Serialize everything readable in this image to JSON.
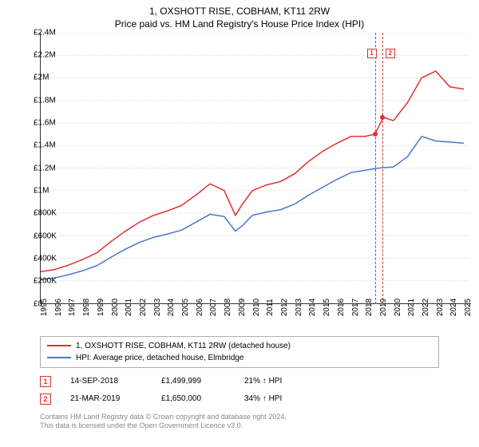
{
  "title": "1, OXSHOTT RISE, COBHAM, KT11 2RW",
  "subtitle": "Price paid vs. HM Land Registry's House Price Index (HPI)",
  "chart": {
    "type": "line",
    "background_color": "#ffffff",
    "grid_color": "#dddddd",
    "axis_color": "#333333",
    "x_years": [
      1995,
      1996,
      1997,
      1998,
      1999,
      2000,
      2001,
      2002,
      2003,
      2004,
      2005,
      2006,
      2007,
      2008,
      2009,
      2010,
      2011,
      2012,
      2013,
      2014,
      2015,
      2016,
      2017,
      2018,
      2019,
      2020,
      2021,
      2022,
      2023,
      2024,
      2025
    ],
    "x_min": 1995,
    "x_max": 2025.5,
    "y_min": 0,
    "y_max": 2400000,
    "y_ticks": [
      0,
      200000,
      400000,
      600000,
      800000,
      1000000,
      1200000,
      1400000,
      1600000,
      1800000,
      2000000,
      2200000,
      2400000
    ],
    "y_tick_labels": [
      "£0",
      "£200K",
      "£400K",
      "£600K",
      "£800K",
      "£1M",
      "£1.2M",
      "£1.4M",
      "£1.6M",
      "£1.8M",
      "£2M",
      "£2.2M",
      "£2.4M"
    ],
    "label_fontsize": 10,
    "line_width": 1.5,
    "series": [
      {
        "name": "1, OXSHOTT RISE, COBHAM, KT11 2RW (detached house)",
        "color": "#e03030",
        "x": [
          1995,
          1996,
          1997,
          1998,
          1999,
          2000,
          2001,
          2002,
          2003,
          2004,
          2005,
          2006,
          2007,
          2008,
          2008.8,
          2009.3,
          2010,
          2011,
          2012,
          2013,
          2014,
          2015,
          2016,
          2017,
          2018,
          2018.7,
          2019,
          2019.3,
          2020,
          2021,
          2022,
          2023,
          2024,
          2025
        ],
        "y": [
          280000,
          300000,
          340000,
          390000,
          450000,
          550000,
          640000,
          720000,
          780000,
          820000,
          870000,
          960000,
          1060000,
          1000000,
          780000,
          880000,
          1000000,
          1050000,
          1080000,
          1150000,
          1260000,
          1350000,
          1420000,
          1480000,
          1480000,
          1499999,
          1580000,
          1650000,
          1620000,
          1780000,
          2000000,
          2060000,
          1920000,
          1900000
        ]
      },
      {
        "name": "HPI: Average price, detached house, Elmbridge",
        "color": "#4a78c8",
        "x": [
          1995,
          1996,
          1997,
          1998,
          1999,
          2000,
          2001,
          2002,
          2003,
          2004,
          2005,
          2006,
          2007,
          2008,
          2008.8,
          2009.3,
          2010,
          2011,
          2012,
          2013,
          2014,
          2015,
          2016,
          2017,
          2018,
          2019,
          2020,
          2021,
          2022,
          2023,
          2024,
          2025
        ],
        "y": [
          210000,
          225000,
          255000,
          290000,
          335000,
          410000,
          480000,
          540000,
          585000,
          615000,
          650000,
          720000,
          790000,
          770000,
          640000,
          690000,
          780000,
          810000,
          830000,
          880000,
          960000,
          1030000,
          1100000,
          1160000,
          1180000,
          1200000,
          1210000,
          1300000,
          1480000,
          1440000,
          1430000,
          1420000
        ]
      }
    ],
    "markers": [
      {
        "label": "1",
        "x": 2018.7,
        "y": 1499999,
        "color": "#e03030",
        "label_y_offset": -180
      },
      {
        "label": "2",
        "x": 2019.22,
        "y": 1650000,
        "color": "#e03030",
        "label_y_offset": -180
      }
    ],
    "vlines": [
      {
        "x": 2018.7,
        "color": "#e03030"
      },
      {
        "x": 2019.22,
        "color": "#e03030"
      }
    ]
  },
  "legend": {
    "border_color": "#b0b0b0",
    "fontsize": 10,
    "items": [
      {
        "label": "1, OXSHOTT RISE, COBHAM, KT11 2RW (detached house)",
        "color": "#e03030"
      },
      {
        "label": "HPI: Average price, detached house, Elmbridge",
        "color": "#4a78c8"
      }
    ]
  },
  "sales": [
    {
      "marker": "1",
      "color": "#e03030",
      "date": "14-SEP-2018",
      "price": "£1,499,999",
      "pct": "21% ↑ HPI"
    },
    {
      "marker": "2",
      "color": "#e03030",
      "date": "21-MAR-2019",
      "price": "£1,650,000",
      "pct": "34% ↑ HPI"
    }
  ],
  "footer_line1": "Contains HM Land Registry data © Crown copyright and database right 2024.",
  "footer_line2": "This data is licensed under the Open Government Licence v3.0."
}
